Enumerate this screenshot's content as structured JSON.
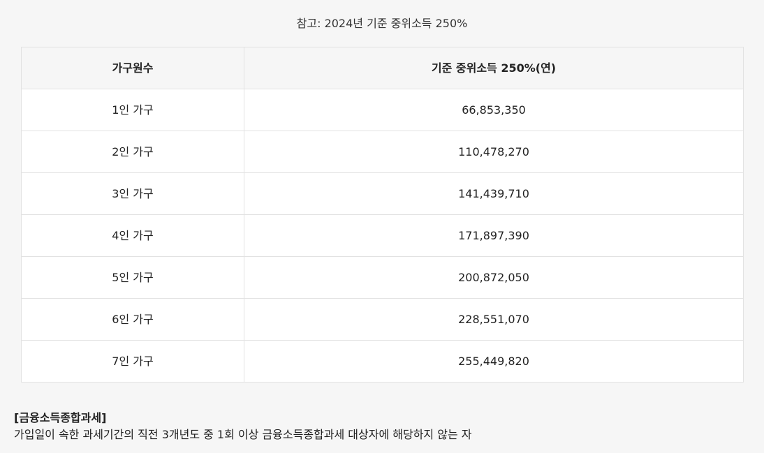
{
  "caption": "참고: 2024년 기준 중위소득 250%",
  "table": {
    "headers": [
      "가구원수",
      "기준 중위소득 250%(연)"
    ],
    "rows": [
      [
        "1인 가구",
        "66,853,350"
      ],
      [
        "2인 가구",
        "110,478,270"
      ],
      [
        "3인 가구",
        "141,439,710"
      ],
      [
        "4인 가구",
        "171,897,390"
      ],
      [
        "5인 가구",
        "200,872,050"
      ],
      [
        "6인 가구",
        "228,551,070"
      ],
      [
        "7인 가구",
        "255,449,820"
      ]
    ]
  },
  "note": {
    "title": "[금융소득종합과세]",
    "text": "가입일이 속한 과세기간의 직전 3개년도 중 1회 이상 금융소득종합과세 대상자에 해당하지 않는 자"
  }
}
